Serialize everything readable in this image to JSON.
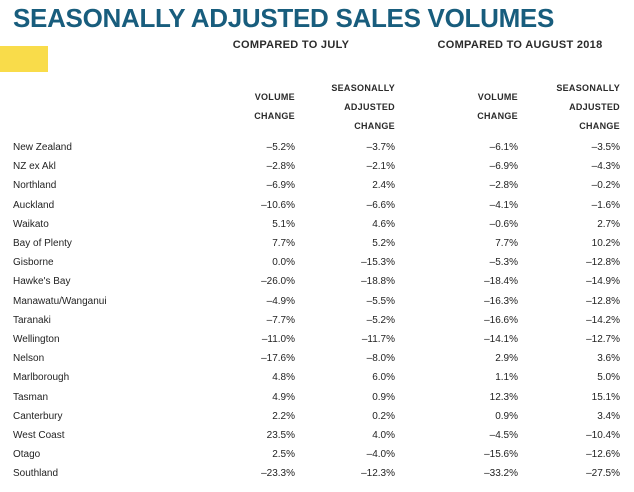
{
  "title": "SEASONALLY ADJUSTED SALES VOLUMES",
  "accent_colors": {
    "title_teal": "#185d7d",
    "highlight_yellow": "#f9dc4a",
    "header_text": "#2b2b2b",
    "body_text": "#232323"
  },
  "table": {
    "group_headers": {
      "july": "COMPARED TO JULY",
      "august": "COMPARED TO AUGUST 2018"
    },
    "column_headers": {
      "c1": "VOLUME\nCHANGE",
      "c2": "SEASONALLY\nADJUSTED\nCHANGE",
      "c3": "VOLUME\nCHANGE",
      "c4": "SEASONALLY\nADJUSTED\nCHANGE"
    },
    "rows": [
      {
        "region": "New Zealand",
        "values": [
          "–5.2%",
          "–3.7%",
          "–6.1%",
          "–3.5%"
        ]
      },
      {
        "region": "NZ ex Akl",
        "values": [
          "–2.8%",
          "–2.1%",
          "–6.9%",
          "–4.3%"
        ]
      },
      {
        "region": "Northland",
        "values": [
          "–6.9%",
          "2.4%",
          "–2.8%",
          "–0.2%"
        ]
      },
      {
        "region": "Auckland",
        "values": [
          "–10.6%",
          "–6.6%",
          "–4.1%",
          "–1.6%"
        ]
      },
      {
        "region": "Waikato",
        "values": [
          "5.1%",
          "4.6%",
          "–0.6%",
          "2.7%"
        ]
      },
      {
        "region": "Bay of Plenty",
        "values": [
          "7.7%",
          "5.2%",
          "7.7%",
          "10.2%"
        ]
      },
      {
        "region": "Gisborne",
        "values": [
          "0.0%",
          "–15.3%",
          "–5.3%",
          "–12.8%"
        ]
      },
      {
        "region": "Hawke's Bay",
        "values": [
          "–26.0%",
          "–18.8%",
          "–18.4%",
          "–14.9%"
        ]
      },
      {
        "region": "Manawatu/Wanganui",
        "values": [
          "–4.9%",
          "–5.5%",
          "–16.3%",
          "–12.8%"
        ]
      },
      {
        "region": "Taranaki",
        "values": [
          "–7.7%",
          "–5.2%",
          "–16.6%",
          "–14.2%"
        ]
      },
      {
        "region": "Wellington",
        "values": [
          "–11.0%",
          "–11.7%",
          "–14.1%",
          "–12.7%"
        ]
      },
      {
        "region": "Nelson",
        "values": [
          "–17.6%",
          "–8.0%",
          "2.9%",
          "3.6%"
        ]
      },
      {
        "region": "Marlborough",
        "values": [
          "4.8%",
          "6.0%",
          "1.1%",
          "5.0%"
        ]
      },
      {
        "region": "Tasman",
        "values": [
          "4.9%",
          "0.9%",
          "12.3%",
          "15.1%"
        ]
      },
      {
        "region": "Canterbury",
        "values": [
          "2.2%",
          "0.2%",
          "0.9%",
          "3.4%"
        ]
      },
      {
        "region": "West Coast",
        "values": [
          "23.5%",
          "4.0%",
          "–4.5%",
          "–10.4%"
        ]
      },
      {
        "region": "Otago",
        "values": [
          "2.5%",
          "–4.0%",
          "–15.6%",
          "–12.6%"
        ]
      },
      {
        "region": "Southland",
        "values": [
          "–23.3%",
          "–12.3%",
          "–33.2%",
          "–27.5%"
        ]
      }
    ]
  },
  "chart_data": {
    "type": "table",
    "title": "SEASONALLY ADJUSTED SALES VOLUMES",
    "column_groups": [
      "COMPARED TO JULY",
      "COMPARED TO AUGUST 2018"
    ],
    "columns": [
      "Region",
      "Volume Change (vs July)",
      "Seasonally Adjusted Change (vs July)",
      "Volume Change (vs August 2018)",
      "Seasonally Adjusted Change (vs August 2018)"
    ],
    "unit": "percent",
    "rows": [
      [
        "New Zealand",
        -5.2,
        -3.7,
        -6.1,
        -3.5
      ],
      [
        "NZ ex Akl",
        -2.8,
        -2.1,
        -6.9,
        -4.3
      ],
      [
        "Northland",
        -6.9,
        2.4,
        -2.8,
        -0.2
      ],
      [
        "Auckland",
        -10.6,
        -6.6,
        -4.1,
        -1.6
      ],
      [
        "Waikato",
        5.1,
        4.6,
        -0.6,
        2.7
      ],
      [
        "Bay of Plenty",
        7.7,
        5.2,
        7.7,
        10.2
      ],
      [
        "Gisborne",
        0.0,
        -15.3,
        -5.3,
        -12.8
      ],
      [
        "Hawke's Bay",
        -26.0,
        -18.8,
        -18.4,
        -14.9
      ],
      [
        "Manawatu/Wanganui",
        -4.9,
        -5.5,
        -16.3,
        -12.8
      ],
      [
        "Taranaki",
        -7.7,
        -5.2,
        -16.6,
        -14.2
      ],
      [
        "Wellington",
        -11.0,
        -11.7,
        -14.1,
        -12.7
      ],
      [
        "Nelson",
        -17.6,
        -8.0,
        2.9,
        3.6
      ],
      [
        "Marlborough",
        4.8,
        6.0,
        1.1,
        5.0
      ],
      [
        "Tasman",
        4.9,
        0.9,
        12.3,
        15.1
      ],
      [
        "Canterbury",
        2.2,
        0.2,
        0.9,
        3.4
      ],
      [
        "West Coast",
        23.5,
        4.0,
        -4.5,
        -10.4
      ],
      [
        "Otago",
        2.5,
        -4.0,
        -15.6,
        -12.6
      ],
      [
        "Southland",
        -23.3,
        -12.3,
        -33.2,
        -27.5
      ]
    ]
  }
}
